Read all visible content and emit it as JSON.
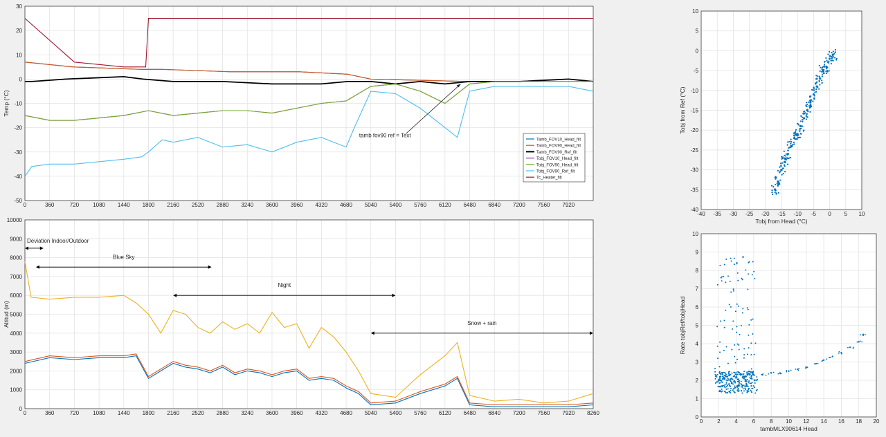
{
  "chart_data": [
    {
      "type": "line",
      "id": "temp",
      "ylabel": "Temp (°C)",
      "xlim": [
        0,
        8280
      ],
      "ylim": [
        -50,
        30
      ],
      "xticks": [
        "0",
        "360",
        "720",
        "1080",
        "1440",
        "1800",
        "2160",
        "2520",
        "2880",
        "3240",
        "3600",
        "3960",
        "4320",
        "4680",
        "5040",
        "5400",
        "5760",
        "6120",
        "6480",
        "6840",
        "7200",
        "7560",
        "7920"
      ],
      "yticks": [
        "-50",
        "-40",
        "-30",
        "-20",
        "-10",
        "0",
        "10",
        "20",
        "30"
      ],
      "grid": true,
      "legend": {
        "placement": "right",
        "entries": [
          "Tamb_FOV10_Head_filt",
          "Tamb_FOV90_Head_filt",
          "Tamb_FOV90_Ref_filt",
          "Tobj_FOV10_Head_filt",
          "Tobj_FOV90_Head_filt",
          "Tobj_FOV90_Ref_filt",
          "Tc_Heater_filt"
        ]
      },
      "annotation": "tamb fov90 ref = Text",
      "series": [
        {
          "name": "Tamb_FOV10_Head_filt",
          "color": "#0072bd",
          "x": [
            0,
            700,
            1700,
            2000,
            3000,
            4000,
            4700,
            5040,
            6500,
            7200,
            8280
          ],
          "y": [
            7,
            5,
            4,
            4,
            3,
            3,
            2,
            0,
            -1,
            -1,
            -1
          ]
        },
        {
          "name": "Tamb_FOV90_Head_filt",
          "color": "#d95319",
          "x": [
            0,
            700,
            1700,
            2000,
            3000,
            4000,
            4700,
            5040,
            6500,
            7200,
            8280
          ],
          "y": [
            7,
            5,
            4,
            4,
            3,
            3,
            2,
            0,
            -1,
            -1,
            -1
          ]
        },
        {
          "name": "Tamb_FOV90_Ref_filt",
          "color": "#000000",
          "x": [
            0,
            100,
            600,
            1440,
            1720,
            2160,
            2880,
            3600,
            4320,
            4700,
            5040,
            5400,
            5760,
            6120,
            6480,
            7200,
            7920,
            8280
          ],
          "y": [
            -1,
            -1,
            0,
            1,
            0,
            -1,
            -1,
            -2,
            -2,
            -1,
            -1,
            -2,
            -1,
            -2,
            -1,
            -1,
            0,
            -1
          ]
        },
        {
          "name": "Tobj_FOV10_Head_filt",
          "color": "#7e2f8e",
          "x": [
            0,
            360,
            720,
            1080,
            1440,
            1800,
            2160,
            2520,
            2880,
            3240,
            3600,
            3960,
            4320,
            4680,
            5040,
            5400,
            5760,
            6120,
            6480,
            6840,
            7200,
            7560,
            7920,
            8280
          ],
          "y": [
            -15,
            -17,
            -17,
            -16,
            -15,
            -13,
            -15,
            -14,
            -13,
            -13,
            -14,
            -12,
            -10,
            -9,
            -3,
            -2,
            -5,
            -10,
            -2,
            -1,
            -1,
            -1,
            -1,
            -1
          ]
        },
        {
          "name": "Tobj_FOV90_Head_filt",
          "color": "#77ac30",
          "x": [
            0,
            360,
            720,
            1080,
            1440,
            1800,
            2160,
            2520,
            2880,
            3240,
            3600,
            3960,
            4320,
            4680,
            5040,
            5400,
            5760,
            6120,
            6480,
            6840,
            7200,
            7560,
            7920,
            8280
          ],
          "y": [
            -15,
            -17,
            -17,
            -16,
            -15,
            -13,
            -15,
            -14,
            -13,
            -13,
            -14,
            -12,
            -10,
            -9,
            -3,
            -2,
            -5,
            -10,
            -2,
            -1,
            -1,
            -1,
            -1,
            -1
          ]
        },
        {
          "name": "Tobj_FOV90_Ref_filt",
          "color": "#4dbeee",
          "x": [
            0,
            100,
            360,
            720,
            1080,
            1440,
            1700,
            1800,
            2000,
            2160,
            2520,
            2880,
            3240,
            3600,
            3960,
            4320,
            4680,
            4800,
            5040,
            5400,
            5760,
            6120,
            6300,
            6480,
            6840,
            7200,
            7560,
            7920,
            8280
          ],
          "y": [
            -40,
            -36,
            -35,
            -35,
            -34,
            -33,
            -32,
            -30,
            -25,
            -26,
            -24,
            -28,
            -27,
            -30,
            -26,
            -24,
            -28,
            -20,
            -5,
            -6,
            -12,
            -20,
            -24,
            -5,
            -3,
            -3,
            -3,
            -3,
            -5
          ]
        },
        {
          "name": "Tc_Heater_filt",
          "color": "#a2142f",
          "x": [
            0,
            720,
            1080,
            1440,
            1760,
            1800,
            8280
          ],
          "y": [
            25,
            7,
            6,
            5,
            5,
            25,
            25
          ]
        }
      ]
    },
    {
      "type": "line",
      "id": "alt",
      "ylabel": "Altitud (m)",
      "xlim": [
        0,
        8280
      ],
      "ylim": [
        0,
        10000
      ],
      "xticks": [
        "0",
        "360",
        "720",
        "1080",
        "1440",
        "1800",
        "2160",
        "2520",
        "2880",
        "3240",
        "3600",
        "3960",
        "4320",
        "4680",
        "5040",
        "5400",
        "5760",
        "6120",
        "6480",
        "6840",
        "7200",
        "7560",
        "7920",
        "8260"
      ],
      "yticks": [
        "0",
        "1000",
        "2000",
        "3000",
        "4000",
        "5000",
        "6000",
        "7000",
        "8000",
        "9000",
        "10000"
      ],
      "grid": true,
      "annotations": [
        {
          "text": "Deviation Indoor/Outdoor",
          "x0": 0,
          "x1": 270,
          "y": 8500
        },
        {
          "text": "Blue Sky",
          "x0": 160,
          "x1": 2720,
          "y": 7500
        },
        {
          "text": "Night",
          "x0": 2160,
          "x1": 5400,
          "y": 6000
        },
        {
          "text": "Snow + rain",
          "x0": 5040,
          "x1": 8280,
          "y": 4000
        }
      ],
      "series": [
        {
          "name": "yellow",
          "color": "#edb120",
          "x": [
            0,
            90,
            360,
            720,
            1080,
            1440,
            1620,
            1800,
            1980,
            2160,
            2340,
            2520,
            2700,
            2880,
            3060,
            3240,
            3420,
            3600,
            3780,
            3960,
            4140,
            4320,
            4500,
            4680,
            4860,
            5040,
            5400,
            5760,
            6120,
            6300,
            6480,
            6840,
            7200,
            7560,
            7920,
            8280
          ],
          "y": [
            7800,
            5900,
            5800,
            5900,
            5900,
            6000,
            5600,
            5000,
            4000,
            5200,
            5000,
            4300,
            4000,
            4600,
            4200,
            4500,
            4000,
            5100,
            4300,
            4500,
            3200,
            4300,
            3800,
            3000,
            2000,
            800,
            600,
            1800,
            2800,
            3500,
            700,
            400,
            500,
            300,
            400,
            800
          ]
        },
        {
          "name": "blue",
          "color": "#0072bd",
          "x": [
            0,
            360,
            720,
            1080,
            1440,
            1620,
            1800,
            1980,
            2160,
            2340,
            2520,
            2700,
            2880,
            3060,
            3240,
            3420,
            3600,
            3780,
            3960,
            4140,
            4320,
            4500,
            4680,
            4860,
            5040,
            5400,
            5760,
            6120,
            6300,
            6480,
            6840,
            7200,
            7560,
            7920,
            8280
          ],
          "y": [
            2400,
            2700,
            2600,
            2700,
            2700,
            2800,
            1600,
            2000,
            2400,
            2200,
            2100,
            1900,
            2200,
            1800,
            2000,
            1900,
            1700,
            1900,
            2000,
            1500,
            1600,
            1500,
            1100,
            800,
            200,
            300,
            800,
            1200,
            1600,
            200,
            100,
            100,
            100,
            100,
            200
          ]
        },
        {
          "name": "orange",
          "color": "#d95319",
          "x": [
            0,
            360,
            720,
            1080,
            1440,
            1620,
            1800,
            1980,
            2160,
            2340,
            2520,
            2700,
            2880,
            3060,
            3240,
            3420,
            3600,
            3780,
            3960,
            4140,
            4320,
            4500,
            4680,
            4860,
            5040,
            5400,
            5760,
            6120,
            6300,
            6480,
            6840,
            7200,
            7560,
            7920,
            8280
          ],
          "y": [
            2500,
            2800,
            2700,
            2800,
            2800,
            2900,
            1700,
            2100,
            2500,
            2300,
            2200,
            2000,
            2300,
            1900,
            2100,
            2000,
            1800,
            2000,
            2100,
            1600,
            1700,
            1600,
            1200,
            900,
            300,
            400,
            900,
            1300,
            1700,
            300,
            200,
            200,
            200,
            200,
            300
          ]
        }
      ]
    },
    {
      "type": "scatter",
      "id": "sc1",
      "xlabel": "Tobj from Head (°C)",
      "ylabel": "Tobj from Ref (°C)",
      "xlim": [
        -40,
        10
      ],
      "ylim": [
        -40,
        10
      ],
      "xticks": [
        "-40",
        "-35",
        "-30",
        "-25",
        "-20",
        "-15",
        "-10",
        "-5",
        "0",
        "5",
        "10"
      ],
      "yticks": [
        "-40",
        "-35",
        "-30",
        "-25",
        "-20",
        "-15",
        "-10",
        "-5",
        "0",
        "5",
        "10"
      ],
      "grid": true,
      "color": "#0072bd",
      "x": [
        -17,
        -16,
        -15,
        -14,
        -13,
        -12,
        -11,
        -10,
        -9,
        -8,
        -7,
        -6,
        -5,
        -4,
        -3,
        -2,
        -1,
        0,
        1
      ],
      "y": [
        -35,
        -33,
        -30,
        -28,
        -26,
        -24,
        -22,
        -21,
        -19,
        -17,
        -15,
        -13,
        -11,
        -9,
        -7,
        -5,
        -4,
        -2,
        -1
      ]
    },
    {
      "type": "scatter",
      "id": "sc2",
      "xlabel": "tambMLX90614 Head",
      "ylabel": "Rate tobjRef/tobjHead",
      "xlim": [
        0,
        20
      ],
      "ylim": [
        0,
        10
      ],
      "xticks": [
        "0",
        "2",
        "4",
        "6",
        "8",
        "10",
        "12",
        "14",
        "16",
        "18",
        "20"
      ],
      "yticks": [
        "0",
        "1",
        "2",
        "3",
        "4",
        "5",
        "6",
        "7",
        "8",
        "9",
        "10"
      ],
      "grid": true,
      "color": "#0072bd",
      "x": [
        2,
        2.5,
        3,
        3.5,
        4,
        4.5,
        5,
        5.5,
        6,
        7,
        8,
        9,
        10,
        11,
        12,
        13,
        14,
        15,
        16,
        17,
        18,
        18.5
      ],
      "y": [
        2,
        2.1,
        2.2,
        2.1,
        2.2,
        2.3,
        2.2,
        2.3,
        2.3,
        2.3,
        2.4,
        2.4,
        2.5,
        2.6,
        2.7,
        2.9,
        3.1,
        3.3,
        3.5,
        3.8,
        4.1,
        4.5
      ]
    }
  ]
}
